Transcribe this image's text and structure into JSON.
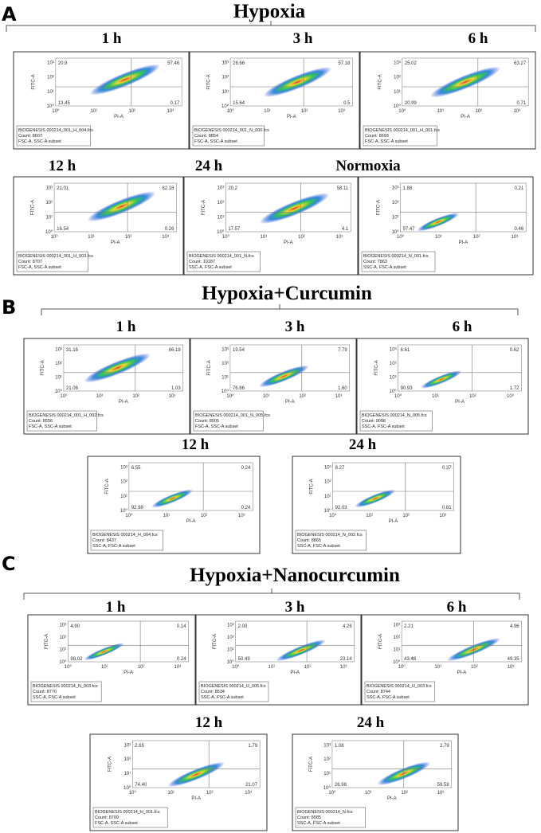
{
  "axis": {
    "x_label": "PI-A",
    "y_label": "FITC-A",
    "ticks": [
      "10⁰",
      "10¹",
      "10²",
      "10³"
    ]
  },
  "sections": [
    {
      "letter": "A",
      "title": "Hypoxia",
      "plots": [
        {
          "label": "1 h",
          "quadrants": {
            "ul": "20.9",
            "ur": "57.46",
            "ll": "13.45",
            "lr": "0.17"
          },
          "file": "BIOGENESIS 000214_001_H_004.fcs",
          "count": "Count: 8607",
          "subset": "FSC-A, SSC-A subset"
        },
        {
          "label": "3 h",
          "quadrants": {
            "ul": "26.66",
            "ur": "57.18",
            "ll": "15.64",
            "lr": "0.5"
          },
          "file": "BIOGENESIS 000214_001_N_000.fcs",
          "count": "Count: 8854",
          "subset": "FSC-A, SSC-A subset"
        },
        {
          "label": "6 h",
          "quadrants": {
            "ul": "25.02",
            "ur": "63.27",
            "ll": "20.99",
            "lr": "0.71"
          },
          "file": "BIOGENESIS 000214_001_H_001.fcs",
          "count": "Count: 8693",
          "subset": "FSC-A, SSC-A subset"
        },
        {
          "label": "12 h",
          "quadrants": {
            "ul": "21.01",
            "ur": "62.18",
            "ll": "16.54",
            "lr": "0.26"
          },
          "file": "BIOGENESIS 000214_001_H_003.fcs",
          "count": "Count: 8707",
          "subset": "FSC-A, SSC-A subset"
        },
        {
          "label": "24 h",
          "quadrants": {
            "ul": "20.2",
            "ur": "58.11",
            "ll": "17.57",
            "lr": "4.1"
          },
          "file": "BIOGENESIS 000214_001_N.fcs",
          "count": "Count: 10187",
          "subset": "SSC-A, FSC-A subset"
        },
        {
          "label": "Normoxia",
          "quadrants": {
            "ul": "1.88",
            "ur": "0.21",
            "ll": "97.47",
            "lr": "0.46"
          },
          "file": "BIOGENESIS 000214_N_001.fcs",
          "count": "Count: 7863",
          "subset": "SSC-A, FSC-A subset"
        }
      ]
    },
    {
      "letter": "B",
      "title": "Hypoxia+Curcumin",
      "plots": [
        {
          "label": "1 h",
          "quadrants": {
            "ul": "31.16",
            "ur": "66.18",
            "ll": "21.06",
            "lr": "1.03"
          },
          "file": "BIOGENESIS 000214_001_H_002.fcs",
          "count": "Count: 8556",
          "subset": "FSC-A, SSC-A subset"
        },
        {
          "label": "3 h",
          "quadrants": {
            "ul": "19.54",
            "ur": "7.79",
            "ll": "76.86",
            "lr": "1.60"
          },
          "file": "BIOGENESIS 000214_001_N_005.fcs",
          "count": "Count: 8005",
          "subset": "FSC-A, SSC-A subset"
        },
        {
          "label": "6 h",
          "quadrants": {
            "ul": "6.61",
            "ur": "0.62",
            "ll": "90.93",
            "lr": "1.72"
          },
          "file": "BIOGENESIS 000214_N_005.fcs",
          "count": "Count: 9098",
          "subset": "SSC-A, FSC-A subset"
        },
        {
          "label": "12 h",
          "quadrants": {
            "ul": "6.55",
            "ur": "0.24",
            "ll": "92.98",
            "lr": "0.24"
          },
          "file": "BIOGENESIS 000214_H_004.fcs",
          "count": "Count: 8437",
          "subset": "SSC-A, FSC-A subset"
        },
        {
          "label": "24 h",
          "quadrants": {
            "ul": "8.27",
            "ur": "0.37",
            "ll": "92.03",
            "lr": "0.81"
          },
          "file": "BIOGENESIS 000214_N_002.fcs",
          "count": "Count: 8865",
          "subset": "SSC-A, FSC-A subset"
        }
      ]
    },
    {
      "letter": "C",
      "title": "Hypoxia+Nanocurcumin",
      "plots": [
        {
          "label": "1 h",
          "quadrants": {
            "ul": "4.90",
            "ur": "0.14",
            "ll": "98.02",
            "lr": "0.24"
          },
          "file": "BIOGENESIS 000214_N_003.fcs",
          "count": "Count: 8770",
          "subset": "SSC-A, FSC-A subset"
        },
        {
          "label": "3 h",
          "quadrants": {
            "ul": "2.00",
            "ur": "4.26",
            "ll": "50.49",
            "lr": "23.14"
          },
          "file": "BIOGENESIS 000214_H_005.fcs",
          "count": "Count: 8534",
          "subset": "SSC-A, FSC-A subset"
        },
        {
          "label": "6 h",
          "quadrants": {
            "ul": "2.21",
            "ur": "4.96",
            "ll": "43.48",
            "lr": "49.35"
          },
          "file": "BIOGENESIS 000214_H_003.fcs",
          "count": "Count: 8744",
          "subset": "SSC-A, FSC-A subset"
        },
        {
          "label": "12 h",
          "quadrants": {
            "ul": "2.65",
            "ur": "1.79",
            "ll": "74.40",
            "lr": "21.07"
          },
          "file": "BIOGENESIS 000214_H_001.fcs",
          "count": "Count: 8709",
          "subset": "FSC-A, SSC-A subset"
        },
        {
          "label": "24 h",
          "quadrants": {
            "ul": "1.08",
            "ur": "2.79",
            "ll": "26.98",
            "lr": "59.58"
          },
          "file": "BIOGENESIS 000214_N.fcs",
          "count": "Count: 8985",
          "subset": "SSC-A, FSC-A subset"
        }
      ]
    }
  ]
}
